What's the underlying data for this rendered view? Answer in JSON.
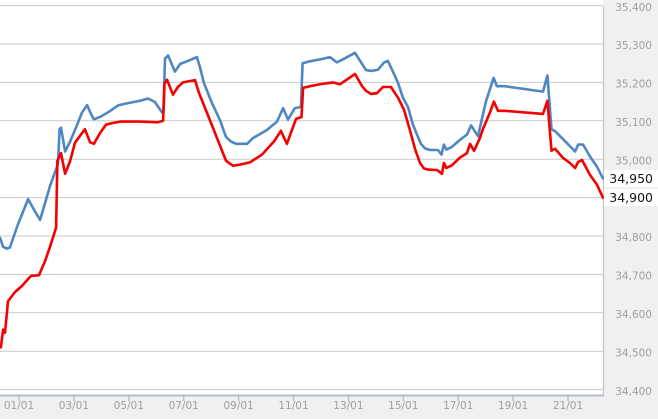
{
  "chart_data": {
    "type": "line",
    "title": "",
    "grid": true,
    "legend": "none",
    "background_color": "#f0f0f0",
    "plot_background_color": "#ffffff",
    "gridline_color": "#cacaca",
    "axis_line_color": "#aeb8c4",
    "tick_color": "#a5bdd2",
    "axis_text_color": "#9f9f9f",
    "x_axis": {
      "tick_labels": [
        "01/01",
        "03/01",
        "05/01",
        "07/01",
        "09/01",
        "11/01",
        "13/01",
        "15/01",
        "17/01",
        "19/01",
        "21/01"
      ],
      "unit": "date (dd/mm)",
      "xlim_days": [
        -0.72,
        21.4
      ]
    },
    "y_axis": {
      "side": "right",
      "min": 34400,
      "max": 35400,
      "step": 100,
      "tick_labels": [
        "35,400",
        "35,300",
        "35,200",
        "35,100",
        "35,000",
        "34,900",
        "34,800",
        "34,700",
        "34,600",
        "34,500",
        "34,400"
      ]
    },
    "series": [
      {
        "id": "blue-line",
        "color": "#4e87c1",
        "end_label": "34,950",
        "points": [
          [
            -0.69,
            34795
          ],
          [
            -0.58,
            34772
          ],
          [
            -0.44,
            34767
          ],
          [
            -0.33,
            34770
          ],
          [
            -0.04,
            34830
          ],
          [
            0.33,
            34896
          ],
          [
            0.55,
            34868
          ],
          [
            0.77,
            34842
          ],
          [
            1.13,
            34930
          ],
          [
            1.42,
            34988
          ],
          [
            1.48,
            35078
          ],
          [
            1.53,
            35082
          ],
          [
            1.68,
            35020
          ],
          [
            1.86,
            35046
          ],
          [
            2.04,
            35076
          ],
          [
            2.3,
            35122
          ],
          [
            2.48,
            35141
          ],
          [
            2.62,
            35118
          ],
          [
            2.73,
            35104
          ],
          [
            2.95,
            35110
          ],
          [
            3.24,
            35122
          ],
          [
            3.61,
            35140
          ],
          [
            3.97,
            35146
          ],
          [
            4.41,
            35152
          ],
          [
            4.7,
            35158
          ],
          [
            4.95,
            35149
          ],
          [
            5.21,
            35122
          ],
          [
            5.26,
            35124
          ],
          [
            5.32,
            35262
          ],
          [
            5.43,
            35270
          ],
          [
            5.68,
            35228
          ],
          [
            5.87,
            35248
          ],
          [
            6.23,
            35258
          ],
          [
            6.48,
            35266
          ],
          [
            6.59,
            35240
          ],
          [
            6.74,
            35198
          ],
          [
            7.03,
            35146
          ],
          [
            7.32,
            35102
          ],
          [
            7.54,
            35058
          ],
          [
            7.72,
            35046
          ],
          [
            7.91,
            35040
          ],
          [
            8.31,
            35040
          ],
          [
            8.52,
            35055
          ],
          [
            9.03,
            35076
          ],
          [
            9.4,
            35098
          ],
          [
            9.62,
            35133
          ],
          [
            9.8,
            35103
          ],
          [
            10.05,
            35133
          ],
          [
            10.27,
            35136
          ],
          [
            10.33,
            35250
          ],
          [
            10.6,
            35255
          ],
          [
            11.04,
            35261
          ],
          [
            11.33,
            35266
          ],
          [
            11.58,
            35252
          ],
          [
            11.88,
            35263
          ],
          [
            12.24,
            35277
          ],
          [
            12.5,
            35248
          ],
          [
            12.64,
            35232
          ],
          [
            12.86,
            35230
          ],
          [
            13.08,
            35233
          ],
          [
            13.3,
            35252
          ],
          [
            13.44,
            35256
          ],
          [
            13.62,
            35228
          ],
          [
            13.81,
            35198
          ],
          [
            13.99,
            35160
          ],
          [
            14.17,
            35136
          ],
          [
            14.35,
            35090
          ],
          [
            14.5,
            35064
          ],
          [
            14.64,
            35040
          ],
          [
            14.79,
            35028
          ],
          [
            14.97,
            35024
          ],
          [
            15.26,
            35024
          ],
          [
            15.39,
            35012
          ],
          [
            15.48,
            35038
          ],
          [
            15.57,
            35025
          ],
          [
            15.77,
            35032
          ],
          [
            16.06,
            35050
          ],
          [
            16.32,
            35064
          ],
          [
            16.47,
            35088
          ],
          [
            16.72,
            35060
          ],
          [
            17.01,
            35150
          ],
          [
            17.29,
            35212
          ],
          [
            17.41,
            35190
          ],
          [
            17.7,
            35190
          ],
          [
            19.09,
            35176
          ],
          [
            19.25,
            35218
          ],
          [
            19.4,
            35078
          ],
          [
            19.53,
            35073
          ],
          [
            19.82,
            35052
          ],
          [
            20.07,
            35034
          ],
          [
            20.26,
            35020
          ],
          [
            20.37,
            35038
          ],
          [
            20.55,
            35038
          ],
          [
            20.8,
            35007
          ],
          [
            21.06,
            34980
          ],
          [
            21.27,
            34950
          ]
        ]
      },
      {
        "id": "red-line",
        "color": "#f40000",
        "end_label": "34,900",
        "points": [
          [
            -0.66,
            34510
          ],
          [
            -0.58,
            34556
          ],
          [
            -0.51,
            34548
          ],
          [
            -0.4,
            34630
          ],
          [
            -0.15,
            34654
          ],
          [
            0.11,
            34670
          ],
          [
            0.33,
            34688
          ],
          [
            0.44,
            34696
          ],
          [
            0.73,
            34698
          ],
          [
            0.95,
            34735
          ],
          [
            1.13,
            34772
          ],
          [
            1.35,
            34822
          ],
          [
            1.4,
            34996
          ],
          [
            1.53,
            35016
          ],
          [
            1.68,
            34962
          ],
          [
            1.86,
            34995
          ],
          [
            2.04,
            35043
          ],
          [
            2.4,
            35078
          ],
          [
            2.59,
            35044
          ],
          [
            2.73,
            35040
          ],
          [
            2.95,
            35068
          ],
          [
            3.17,
            35090
          ],
          [
            3.39,
            35094
          ],
          [
            3.68,
            35098
          ],
          [
            4.41,
            35098
          ],
          [
            5.06,
            35096
          ],
          [
            5.25,
            35100
          ],
          [
            5.3,
            35196
          ],
          [
            5.39,
            35207
          ],
          [
            5.61,
            35168
          ],
          [
            5.79,
            35188
          ],
          [
            5.97,
            35200
          ],
          [
            6.41,
            35206
          ],
          [
            6.56,
            35172
          ],
          [
            6.74,
            35140
          ],
          [
            7.03,
            35088
          ],
          [
            7.32,
            35036
          ],
          [
            7.54,
            34996
          ],
          [
            7.65,
            34990
          ],
          [
            7.8,
            34983
          ],
          [
            8.05,
            34986
          ],
          [
            8.42,
            34992
          ],
          [
            8.85,
            35012
          ],
          [
            9.29,
            35046
          ],
          [
            9.54,
            35074
          ],
          [
            9.76,
            35040
          ],
          [
            10.09,
            35105
          ],
          [
            10.29,
            35110
          ],
          [
            10.35,
            35186
          ],
          [
            10.6,
            35190
          ],
          [
            11.04,
            35196
          ],
          [
            11.44,
            35200
          ],
          [
            11.69,
            35195
          ],
          [
            12.24,
            35222
          ],
          [
            12.5,
            35190
          ],
          [
            12.64,
            35178
          ],
          [
            12.82,
            35170
          ],
          [
            13.04,
            35172
          ],
          [
            13.26,
            35188
          ],
          [
            13.55,
            35188
          ],
          [
            13.81,
            35160
          ],
          [
            14.03,
            35128
          ],
          [
            14.24,
            35076
          ],
          [
            14.43,
            35026
          ],
          [
            14.61,
            34990
          ],
          [
            14.75,
            34976
          ],
          [
            14.9,
            34973
          ],
          [
            15.23,
            34972
          ],
          [
            15.41,
            34962
          ],
          [
            15.48,
            34990
          ],
          [
            15.57,
            34977
          ],
          [
            15.77,
            34984
          ],
          [
            16.06,
            35004
          ],
          [
            16.32,
            35016
          ],
          [
            16.43,
            35040
          ],
          [
            16.58,
            35022
          ],
          [
            16.79,
            35055
          ],
          [
            16.9,
            35078
          ],
          [
            17.16,
            35122
          ],
          [
            17.3,
            35150
          ],
          [
            17.45,
            35126
          ],
          [
            17.7,
            35126
          ],
          [
            19.09,
            35118
          ],
          [
            19.25,
            35152
          ],
          [
            19.4,
            35022
          ],
          [
            19.53,
            35027
          ],
          [
            19.82,
            35003
          ],
          [
            20.07,
            34990
          ],
          [
            20.26,
            34977
          ],
          [
            20.37,
            34993
          ],
          [
            20.51,
            34998
          ],
          [
            20.8,
            34959
          ],
          [
            21.06,
            34933
          ],
          [
            21.27,
            34900
          ]
        ]
      }
    ],
    "current_values": {
      "blue": "34,950",
      "red": "34,900"
    }
  }
}
